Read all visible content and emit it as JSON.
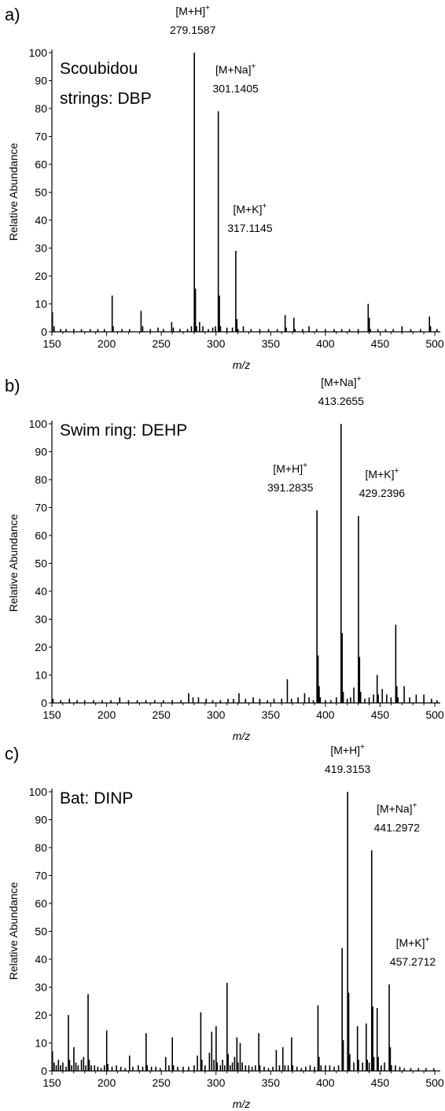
{
  "chart_data": [
    {
      "type": "bar",
      "panel_label": "a)",
      "sample_label_lines": [
        "Scoubidou",
        "strings: DBP"
      ],
      "xlabel": "m/z",
      "ylabel": "Relative Abundance",
      "xlim": [
        150,
        505
      ],
      "ylim": [
        0,
        100
      ],
      "xticks": [
        150,
        200,
        250,
        300,
        350,
        400,
        450,
        500
      ],
      "yticks": [
        0,
        10,
        20,
        30,
        40,
        50,
        60,
        70,
        80,
        90,
        100
      ],
      "annotations": [
        {
          "ion": "[M+H]",
          "charge": "+",
          "mz": "279.1587",
          "at_x": 280.2,
          "at_y": 100
        },
        {
          "ion": "[M+Na]",
          "charge": "+",
          "mz": "301.1405",
          "at_x": 302.1,
          "at_y": 79
        },
        {
          "ion": "[M+K]",
          "charge": "+",
          "mz": "317.1145",
          "at_x": 318.1,
          "at_y": 29
        }
      ],
      "peaks": [
        {
          "x": 150.5,
          "y": 7
        },
        {
          "x": 152,
          "y": 2
        },
        {
          "x": 158,
          "y": 1
        },
        {
          "x": 163,
          "y": 1
        },
        {
          "x": 170,
          "y": 1
        },
        {
          "x": 177,
          "y": 1
        },
        {
          "x": 185,
          "y": 1
        },
        {
          "x": 192,
          "y": 1
        },
        {
          "x": 198,
          "y": 1
        },
        {
          "x": 205.1,
          "y": 13
        },
        {
          "x": 206,
          "y": 2
        },
        {
          "x": 214,
          "y": 1
        },
        {
          "x": 221,
          "y": 1
        },
        {
          "x": 231.5,
          "y": 7.5
        },
        {
          "x": 233,
          "y": 2
        },
        {
          "x": 240,
          "y": 1
        },
        {
          "x": 247,
          "y": 1.5
        },
        {
          "x": 252,
          "y": 1
        },
        {
          "x": 259.5,
          "y": 3.5
        },
        {
          "x": 261,
          "y": 1.5
        },
        {
          "x": 267,
          "y": 1
        },
        {
          "x": 274,
          "y": 1
        },
        {
          "x": 277.5,
          "y": 2
        },
        {
          "x": 280.2,
          "y": 100
        },
        {
          "x": 281.2,
          "y": 15.5
        },
        {
          "x": 282.2,
          "y": 2
        },
        {
          "x": 285,
          "y": 3.5
        },
        {
          "x": 288,
          "y": 2
        },
        {
          "x": 293,
          "y": 1
        },
        {
          "x": 297,
          "y": 1.5
        },
        {
          "x": 299.5,
          "y": 2
        },
        {
          "x": 302.1,
          "y": 79
        },
        {
          "x": 303.1,
          "y": 13
        },
        {
          "x": 304.1,
          "y": 2
        },
        {
          "x": 310,
          "y": 1.5
        },
        {
          "x": 315,
          "y": 1.5
        },
        {
          "x": 318.1,
          "y": 29
        },
        {
          "x": 319.1,
          "y": 4.5
        },
        {
          "x": 320.1,
          "y": 1
        },
        {
          "x": 325,
          "y": 2
        },
        {
          "x": 332,
          "y": 1
        },
        {
          "x": 340,
          "y": 1
        },
        {
          "x": 348,
          "y": 1
        },
        {
          "x": 356,
          "y": 1
        },
        {
          "x": 363.2,
          "y": 6
        },
        {
          "x": 364.2,
          "y": 1.5
        },
        {
          "x": 371.2,
          "y": 5
        },
        {
          "x": 372.2,
          "y": 1
        },
        {
          "x": 379.2,
          "y": 1
        },
        {
          "x": 385,
          "y": 2
        },
        {
          "x": 392,
          "y": 1
        },
        {
          "x": 400,
          "y": 1
        },
        {
          "x": 408,
          "y": 1
        },
        {
          "x": 415,
          "y": 1
        },
        {
          "x": 422,
          "y": 1
        },
        {
          "x": 430,
          "y": 1
        },
        {
          "x": 439.1,
          "y": 10
        },
        {
          "x": 440.1,
          "y": 5
        },
        {
          "x": 441.1,
          "y": 1
        },
        {
          "x": 448,
          "y": 1
        },
        {
          "x": 455,
          "y": 1
        },
        {
          "x": 462,
          "y": 1
        },
        {
          "x": 470,
          "y": 2
        },
        {
          "x": 478,
          "y": 1
        },
        {
          "x": 487,
          "y": 1
        },
        {
          "x": 495.1,
          "y": 5.5
        },
        {
          "x": 496.1,
          "y": 2
        },
        {
          "x": 502,
          "y": 1
        }
      ]
    },
    {
      "type": "bar",
      "panel_label": "b)",
      "sample_label_lines": [
        "Swim ring: DEHP"
      ],
      "xlabel": "m/z",
      "ylabel": "Relative Abundance",
      "xlim": [
        150,
        505
      ],
      "ylim": [
        0,
        100
      ],
      "xticks": [
        150,
        200,
        250,
        300,
        350,
        400,
        450,
        500
      ],
      "yticks": [
        0,
        10,
        20,
        30,
        40,
        50,
        60,
        70,
        80,
        90,
        100
      ],
      "annotations": [
        {
          "ion": "[M+Na]",
          "charge": "+",
          "mz": "413.2655",
          "at_x": 414.3,
          "at_y": 100
        },
        {
          "ion": "[M+H]",
          "charge": "+",
          "mz": "391.2835",
          "at_x": 392.3,
          "at_y": 69
        },
        {
          "ion": "[M+K]",
          "charge": "+",
          "mz": "429.2396",
          "at_x": 430.2,
          "at_y": 67
        }
      ],
      "peaks": [
        {
          "x": 151,
          "y": 1.5
        },
        {
          "x": 158,
          "y": 1
        },
        {
          "x": 166,
          "y": 1.5
        },
        {
          "x": 173,
          "y": 1
        },
        {
          "x": 180,
          "y": 1
        },
        {
          "x": 188,
          "y": 1
        },
        {
          "x": 196,
          "y": 1
        },
        {
          "x": 204,
          "y": 1
        },
        {
          "x": 212,
          "y": 2
        },
        {
          "x": 220,
          "y": 1
        },
        {
          "x": 228,
          "y": 1
        },
        {
          "x": 236,
          "y": 1
        },
        {
          "x": 244,
          "y": 1
        },
        {
          "x": 252,
          "y": 1
        },
        {
          "x": 260,
          "y": 1
        },
        {
          "x": 268,
          "y": 1
        },
        {
          "x": 275,
          "y": 3.5
        },
        {
          "x": 279,
          "y": 2
        },
        {
          "x": 284,
          "y": 2
        },
        {
          "x": 291,
          "y": 1.5
        },
        {
          "x": 297,
          "y": 1
        },
        {
          "x": 304,
          "y": 1
        },
        {
          "x": 311,
          "y": 1.5
        },
        {
          "x": 316,
          "y": 1.5
        },
        {
          "x": 321,
          "y": 3.5
        },
        {
          "x": 327,
          "y": 1.5
        },
        {
          "x": 334,
          "y": 2
        },
        {
          "x": 340,
          "y": 1.5
        },
        {
          "x": 347,
          "y": 1
        },
        {
          "x": 353,
          "y": 1.5
        },
        {
          "x": 360,
          "y": 1.5
        },
        {
          "x": 365.2,
          "y": 8.5
        },
        {
          "x": 369,
          "y": 1.5
        },
        {
          "x": 375,
          "y": 2
        },
        {
          "x": 381,
          "y": 3.5
        },
        {
          "x": 385,
          "y": 2
        },
        {
          "x": 389,
          "y": 1
        },
        {
          "x": 392.3,
          "y": 69
        },
        {
          "x": 393.3,
          "y": 17
        },
        {
          "x": 394.3,
          "y": 6
        },
        {
          "x": 395.3,
          "y": 2
        },
        {
          "x": 400,
          "y": 1
        },
        {
          "x": 405,
          "y": 1
        },
        {
          "x": 410,
          "y": 2
        },
        {
          "x": 414.3,
          "y": 100
        },
        {
          "x": 415.3,
          "y": 25
        },
        {
          "x": 416.3,
          "y": 4
        },
        {
          "x": 420,
          "y": 1.5
        },
        {
          "x": 423,
          "y": 2
        },
        {
          "x": 426,
          "y": 5.5
        },
        {
          "x": 430.2,
          "y": 67
        },
        {
          "x": 431.2,
          "y": 16.5
        },
        {
          "x": 432.2,
          "y": 4
        },
        {
          "x": 436,
          "y": 1.5
        },
        {
          "x": 440,
          "y": 2
        },
        {
          "x": 444,
          "y": 3
        },
        {
          "x": 447.3,
          "y": 10
        },
        {
          "x": 448.3,
          "y": 3
        },
        {
          "x": 452,
          "y": 5
        },
        {
          "x": 456,
          "y": 3
        },
        {
          "x": 460,
          "y": 2
        },
        {
          "x": 464.3,
          "y": 28
        },
        {
          "x": 465.3,
          "y": 6
        },
        {
          "x": 466.3,
          "y": 2
        },
        {
          "x": 472,
          "y": 6
        },
        {
          "x": 477,
          "y": 2
        },
        {
          "x": 483,
          "y": 3
        },
        {
          "x": 490,
          "y": 3
        },
        {
          "x": 497,
          "y": 1.5
        },
        {
          "x": 502,
          "y": 1
        }
      ]
    },
    {
      "type": "bar",
      "panel_label": "c)",
      "sample_label_lines": [
        "Bat: DINP"
      ],
      "xlabel": "m/z",
      "ylabel": "Relative Abundance",
      "xlim": [
        150,
        505
      ],
      "ylim": [
        0,
        100
      ],
      "xticks": [
        150,
        200,
        250,
        300,
        350,
        400,
        450,
        500
      ],
      "yticks": [
        0,
        10,
        20,
        30,
        40,
        50,
        60,
        70,
        80,
        90,
        100
      ],
      "annotations": [
        {
          "ion": "[M+H]",
          "charge": "+",
          "mz": "419.3153",
          "at_x": 420.3,
          "at_y": 100
        },
        {
          "ion": "[M+Na]",
          "charge": "+",
          "mz": "441.2972",
          "at_x": 442.3,
          "at_y": 79
        },
        {
          "ion": "[M+K]",
          "charge": "+",
          "mz": "457.2712",
          "at_x": 458.3,
          "at_y": 31
        }
      ],
      "peaks": [
        {
          "x": 150.5,
          "y": 7
        },
        {
          "x": 152,
          "y": 3
        },
        {
          "x": 154,
          "y": 2
        },
        {
          "x": 156,
          "y": 4
        },
        {
          "x": 158,
          "y": 2
        },
        {
          "x": 160,
          "y": 3
        },
        {
          "x": 163,
          "y": 1.5
        },
        {
          "x": 165.1,
          "y": 20
        },
        {
          "x": 166.1,
          "y": 4
        },
        {
          "x": 168,
          "y": 2
        },
        {
          "x": 170.1,
          "y": 8.5
        },
        {
          "x": 172,
          "y": 3
        },
        {
          "x": 174,
          "y": 2
        },
        {
          "x": 177,
          "y": 4
        },
        {
          "x": 179,
          "y": 5
        },
        {
          "x": 181,
          "y": 2
        },
        {
          "x": 183.1,
          "y": 27.5
        },
        {
          "x": 184.1,
          "y": 4
        },
        {
          "x": 186,
          "y": 2
        },
        {
          "x": 189,
          "y": 2
        },
        {
          "x": 192,
          "y": 1.5
        },
        {
          "x": 195,
          "y": 1
        },
        {
          "x": 198,
          "y": 2
        },
        {
          "x": 200.1,
          "y": 14.5
        },
        {
          "x": 201.1,
          "y": 2.5
        },
        {
          "x": 205,
          "y": 1.5
        },
        {
          "x": 209,
          "y": 2
        },
        {
          "x": 213,
          "y": 1.5
        },
        {
          "x": 217,
          "y": 1
        },
        {
          "x": 221,
          "y": 5.5
        },
        {
          "x": 224,
          "y": 1.5
        },
        {
          "x": 229,
          "y": 2
        },
        {
          "x": 233,
          "y": 1.5
        },
        {
          "x": 236.1,
          "y": 13.5
        },
        {
          "x": 237.1,
          "y": 2
        },
        {
          "x": 241,
          "y": 1.5
        },
        {
          "x": 245,
          "y": 1.5
        },
        {
          "x": 249,
          "y": 1
        },
        {
          "x": 254,
          "y": 5
        },
        {
          "x": 257,
          "y": 2
        },
        {
          "x": 260.1,
          "y": 12
        },
        {
          "x": 261.1,
          "y": 2
        },
        {
          "x": 265,
          "y": 1.5
        },
        {
          "x": 270,
          "y": 1.5
        },
        {
          "x": 275,
          "y": 1.5
        },
        {
          "x": 280,
          "y": 2
        },
        {
          "x": 283,
          "y": 5.5
        },
        {
          "x": 286.1,
          "y": 21
        },
        {
          "x": 287.1,
          "y": 4
        },
        {
          "x": 290,
          "y": 2
        },
        {
          "x": 294,
          "y": 6.5
        },
        {
          "x": 296.1,
          "y": 14
        },
        {
          "x": 298.1,
          "y": 4
        },
        {
          "x": 300.1,
          "y": 16
        },
        {
          "x": 301.1,
          "y": 3
        },
        {
          "x": 304,
          "y": 2
        },
        {
          "x": 306,
          "y": 4
        },
        {
          "x": 308,
          "y": 2
        },
        {
          "x": 310.1,
          "y": 31.5
        },
        {
          "x": 311.1,
          "y": 6
        },
        {
          "x": 313,
          "y": 2
        },
        {
          "x": 315,
          "y": 3
        },
        {
          "x": 317,
          "y": 5
        },
        {
          "x": 319.1,
          "y": 12
        },
        {
          "x": 320.1,
          "y": 3
        },
        {
          "x": 322.1,
          "y": 10
        },
        {
          "x": 324,
          "y": 3
        },
        {
          "x": 327,
          "y": 2
        },
        {
          "x": 330,
          "y": 2
        },
        {
          "x": 333,
          "y": 1.5
        },
        {
          "x": 336,
          "y": 2
        },
        {
          "x": 339.1,
          "y": 13.5
        },
        {
          "x": 340.1,
          "y": 2
        },
        {
          "x": 344,
          "y": 1.5
        },
        {
          "x": 348,
          "y": 1
        },
        {
          "x": 352,
          "y": 1.5
        },
        {
          "x": 355.1,
          "y": 7.5
        },
        {
          "x": 358,
          "y": 2
        },
        {
          "x": 361.1,
          "y": 8.5
        },
        {
          "x": 363,
          "y": 2
        },
        {
          "x": 366,
          "y": 2
        },
        {
          "x": 369.1,
          "y": 12
        },
        {
          "x": 370.1,
          "y": 2
        },
        {
          "x": 374,
          "y": 1.5
        },
        {
          "x": 378,
          "y": 1
        },
        {
          "x": 382,
          "y": 1.5
        },
        {
          "x": 386,
          "y": 2
        },
        {
          "x": 390,
          "y": 1.5
        },
        {
          "x": 393.2,
          "y": 23.5
        },
        {
          "x": 394.2,
          "y": 5
        },
        {
          "x": 396,
          "y": 2
        },
        {
          "x": 400,
          "y": 2
        },
        {
          "x": 404,
          "y": 2
        },
        {
          "x": 408,
          "y": 1.5
        },
        {
          "x": 412,
          "y": 2
        },
        {
          "x": 415.3,
          "y": 44
        },
        {
          "x": 416.3,
          "y": 11
        },
        {
          "x": 420.3,
          "y": 100
        },
        {
          "x": 421.3,
          "y": 28
        },
        {
          "x": 422.3,
          "y": 6
        },
        {
          "x": 426,
          "y": 3
        },
        {
          "x": 429.3,
          "y": 16
        },
        {
          "x": 430.3,
          "y": 4
        },
        {
          "x": 434,
          "y": 3
        },
        {
          "x": 437.3,
          "y": 17
        },
        {
          "x": 438.3,
          "y": 4
        },
        {
          "x": 440,
          "y": 3
        },
        {
          "x": 442.3,
          "y": 79
        },
        {
          "x": 443.3,
          "y": 23
        },
        {
          "x": 444.3,
          "y": 5
        },
        {
          "x": 447.3,
          "y": 22.5
        },
        {
          "x": 448.3,
          "y": 5
        },
        {
          "x": 451,
          "y": 2
        },
        {
          "x": 454,
          "y": 3
        },
        {
          "x": 458.3,
          "y": 31
        },
        {
          "x": 459.3,
          "y": 8.5
        },
        {
          "x": 460.3,
          "y": 2
        },
        {
          "x": 464,
          "y": 2
        },
        {
          "x": 468,
          "y": 1.5
        },
        {
          "x": 472,
          "y": 1
        },
        {
          "x": 478,
          "y": 1
        },
        {
          "x": 485,
          "y": 1
        },
        {
          "x": 492,
          "y": 1
        },
        {
          "x": 499,
          "y": 1
        }
      ]
    }
  ]
}
